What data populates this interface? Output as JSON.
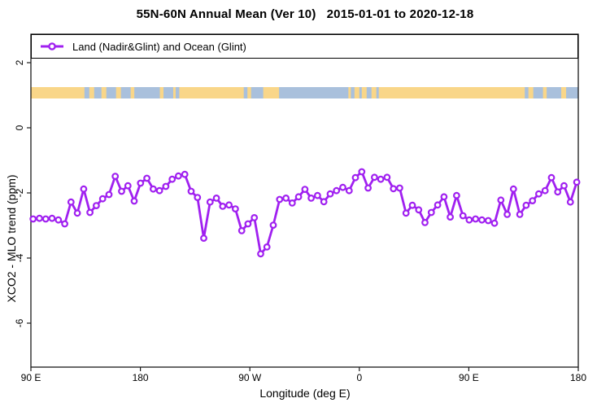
{
  "title": "55N-60N Annual Mean (Ver 10)   2015-01-01 to 2020-12-18",
  "legend": {
    "label": "Land (Nadir&Glint) and Ocean (Glint)",
    "marker_color": "#A020F0"
  },
  "axes": {
    "x_label": "Longitude (deg E)",
    "y_label": "XCO2 - MLO trend (ppm)"
  },
  "colors": {
    "series_purple": "#A020F0",
    "land_strip": "#F9D689",
    "ocean_strip": "#A9C0DC",
    "frame": "#1a1a1a"
  },
  "chart_data": {
    "type": "line",
    "title": "55N-60N Annual Mean (Ver 10)   2015-01-01 to 2020-12-18",
    "xlabel": "Longitude (deg E)",
    "ylabel": "XCO2 - MLO trend (ppm)",
    "x_axis_note": "longitude wrapped eastward: 90E to 180 to 90W to 0 to 90E to 180 (90 to 540 deg E)",
    "x_ticks_deg": [
      90,
      180,
      270,
      360,
      450,
      540
    ],
    "x_tick_labels": [
      "90 E",
      "180",
      "90 W",
      "0",
      "90 E",
      "180"
    ],
    "y_ticks": [
      2,
      0,
      -2,
      -4,
      -6
    ],
    "y_tick_labels": [
      "2",
      "0",
      "-2",
      "-4",
      "-6"
    ],
    "ylim": [
      -7.3,
      2.9
    ],
    "grid": false,
    "legend_position": "top, full-width box inside plot",
    "series": [
      {
        "name": "Land (Nadir&Glint) and Ocean (Glint)",
        "color": "#A020F0",
        "marker": "open-circle",
        "x_start_deg": 91.8,
        "x_end_deg": 538.7,
        "values": [
          -2.8,
          -2.78,
          -2.8,
          -2.78,
          -2.83,
          -2.95,
          -2.28,
          -2.62,
          -1.88,
          -2.6,
          -2.39,
          -2.18,
          -2.05,
          -1.49,
          -1.95,
          -1.78,
          -2.25,
          -1.7,
          -1.55,
          -1.88,
          -1.93,
          -1.8,
          -1.58,
          -1.48,
          -1.43,
          -1.95,
          -2.14,
          -3.39,
          -2.28,
          -2.16,
          -2.41,
          -2.37,
          -2.49,
          -3.16,
          -2.95,
          -2.76,
          -3.87,
          -3.66,
          -2.99,
          -2.2,
          -2.16,
          -2.31,
          -2.12,
          -1.89,
          -2.16,
          -2.08,
          -2.27,
          -2.03,
          -1.93,
          -1.83,
          -1.93,
          -1.53,
          -1.35,
          -1.85,
          -1.52,
          -1.58,
          -1.52,
          -1.87,
          -1.85,
          -2.62,
          -2.38,
          -2.52,
          -2.91,
          -2.6,
          -2.37,
          -2.12,
          -2.74,
          -2.08,
          -2.7,
          -2.83,
          -2.8,
          -2.83,
          -2.85,
          -2.93,
          -2.22,
          -2.66,
          -1.88,
          -2.66,
          -2.38,
          -2.24,
          -2.03,
          -1.93,
          -1.53,
          -1.97,
          -1.78,
          -2.28,
          -1.67
        ]
      }
    ],
    "map_strip": {
      "description": "land/ocean coastline band drawn across plot near y = +1",
      "band_center_value": 1.07,
      "band_halfwidth_value": 0.18,
      "land_color": "#F9D689",
      "ocean_color": "#A9C0DC",
      "land_segments_deg": [
        [
          90,
          134
        ],
        [
          138,
          142
        ],
        [
          148,
          152
        ],
        [
          160,
          164
        ],
        [
          172,
          175
        ],
        [
          196,
          199
        ],
        [
          207,
          209
        ],
        [
          212,
          265
        ],
        [
          268,
          271
        ],
        [
          281,
          294
        ],
        [
          351,
          353
        ],
        [
          356,
          360
        ],
        [
          362,
          366
        ],
        [
          370,
          374
        ],
        [
          376,
          496
        ],
        [
          499,
          503
        ],
        [
          511,
          514
        ],
        [
          526,
          530
        ]
      ]
    }
  }
}
